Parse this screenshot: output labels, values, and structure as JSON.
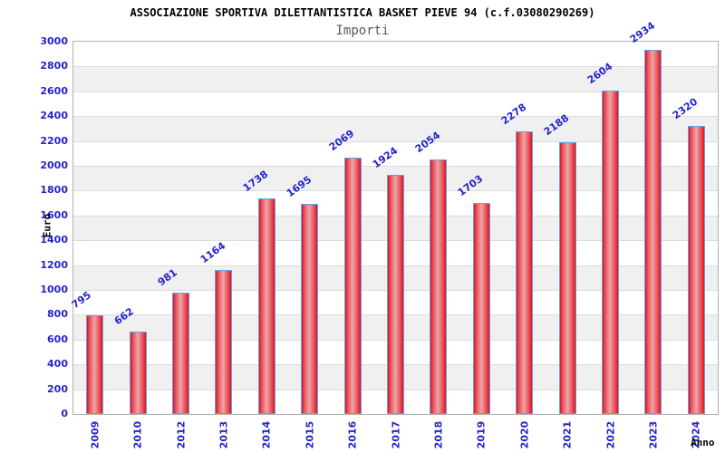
{
  "chart_data": {
    "type": "bar",
    "title": "ASSOCIAZIONE SPORTIVA DILETTANTISTICA BASKET PIEVE 94 (c.f.03080290269)",
    "subtitle": "Importi",
    "xlabel": "Anno",
    "ylabel": "Euro",
    "categories": [
      "2009",
      "2010",
      "2012",
      "2013",
      "2014",
      "2015",
      "2016",
      "2017",
      "2018",
      "2019",
      "2020",
      "2021",
      "2022",
      "2023",
      "2024"
    ],
    "values": [
      795,
      662,
      981,
      1164,
      1738,
      1695,
      2069,
      1924,
      2054,
      1703,
      2278,
      2188,
      2604,
      2934,
      2320
    ],
    "ylim": [
      0,
      3000
    ],
    "ytick_step": 200,
    "grid": true,
    "legend": "none",
    "colors": {
      "bar_edge_dark": "#dd1423",
      "bar_mid": "#e9545c",
      "bar_center_light": "#eda6a8",
      "bar_border": "#63a2e6",
      "label_blue": "#2424cb",
      "band_gray": "#f0f0f0",
      "gridline": "#dcdcdc",
      "plot_border": "#b3b3b3",
      "title_color": "#000000",
      "subtitle_color": "#595959"
    }
  }
}
